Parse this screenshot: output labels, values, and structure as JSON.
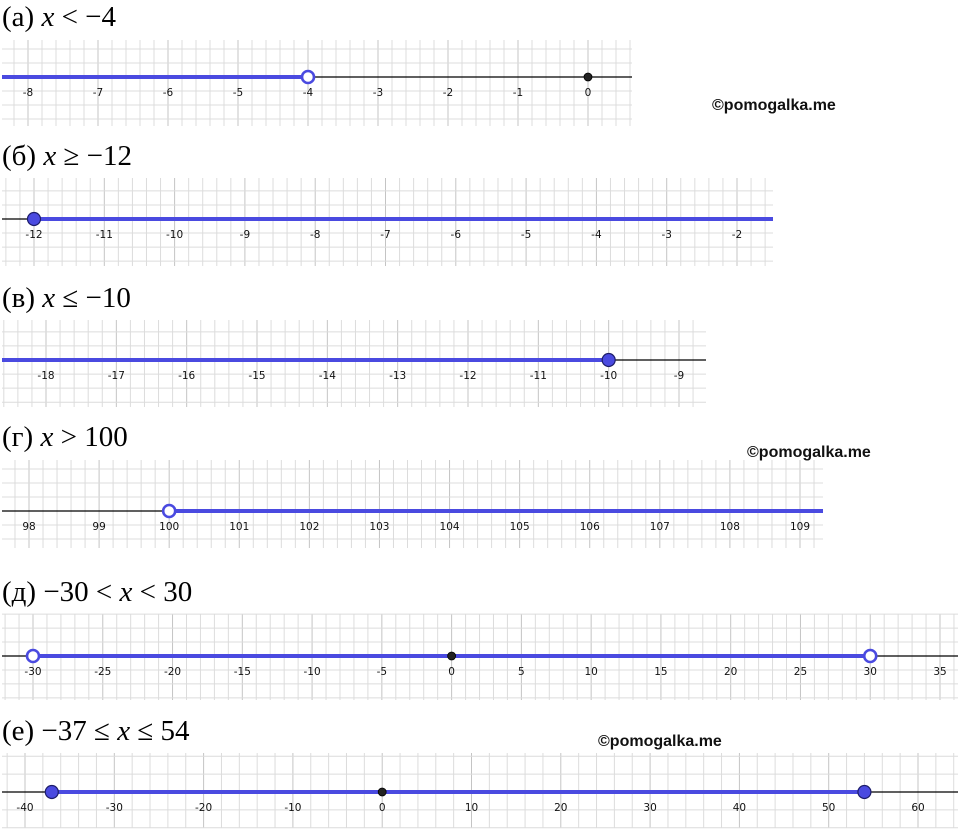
{
  "watermark_text": "©pomogalka.me",
  "colors": {
    "interval": "#4a4ae0",
    "point_fill": "#4a4ae0",
    "zero_point": "#222222",
    "axis": "#000000"
  },
  "chart_data": [
    {
      "type": "number-line",
      "letter": "(а)",
      "pre": "",
      "inequality": "x < −4",
      "label_parts": [
        [
          "(а) ",
          "n"
        ],
        [
          "x",
          "i"
        ],
        [
          " < −4",
          "n"
        ]
      ],
      "ticks": [
        -8,
        -7,
        -6,
        -5,
        -4,
        -3,
        -2,
        -1,
        0
      ],
      "tick_labels": [
        "-8",
        "-7",
        "-6",
        "-5",
        "-4",
        "-3",
        "-2",
        "-1",
        "0"
      ],
      "interval": {
        "from": null,
        "to": -4
      },
      "points": [
        {
          "x": -4,
          "closed": false
        },
        {
          "x": 0,
          "zero": true
        }
      ]
    },
    {
      "type": "number-line",
      "letter": "(б)",
      "inequality": "x ≥ −12",
      "label_parts": [
        [
          "(б) ",
          "n"
        ],
        [
          "x",
          "i"
        ],
        [
          " ≥ −12",
          "n"
        ]
      ],
      "ticks": [
        -12,
        -11,
        -10,
        -9,
        -8,
        -7,
        -6,
        -5,
        -4,
        -3,
        -2
      ],
      "tick_labels": [
        "-12",
        "-11",
        "-10",
        "-9",
        "-8",
        "-7",
        "-6",
        "-5",
        "-4",
        "-3",
        "-2"
      ],
      "interval": {
        "from": -12,
        "to": null
      },
      "points": [
        {
          "x": -12,
          "closed": true
        }
      ]
    },
    {
      "type": "number-line",
      "letter": "(в)",
      "inequality": "x ≤ −10",
      "label_parts": [
        [
          "(в) ",
          "n"
        ],
        [
          "x",
          "i"
        ],
        [
          " ≤ −10",
          "n"
        ]
      ],
      "ticks": [
        -18,
        -17,
        -16,
        -15,
        -14,
        -13,
        -12,
        -11,
        -10,
        -9
      ],
      "tick_labels": [
        "-18",
        "-17",
        "-16",
        "-15",
        "-14",
        "-13",
        "-12",
        "-11",
        "-10",
        "-9"
      ],
      "interval": {
        "from": null,
        "to": -10
      },
      "points": [
        {
          "x": -10,
          "closed": true
        }
      ]
    },
    {
      "type": "number-line",
      "letter": "(г)",
      "inequality": "x > 100",
      "label_parts": [
        [
          "(г) ",
          "n"
        ],
        [
          "x",
          "i"
        ],
        [
          " > 100",
          "n"
        ]
      ],
      "ticks": [
        98,
        99,
        100,
        101,
        102,
        103,
        104,
        105,
        106,
        107,
        108,
        109
      ],
      "tick_labels": [
        "98",
        "99",
        "100",
        "101",
        "102",
        "103",
        "104",
        "105",
        "106",
        "107",
        "108",
        "109"
      ],
      "interval": {
        "from": 100,
        "to": null
      },
      "points": [
        {
          "x": 100,
          "closed": false
        }
      ]
    },
    {
      "type": "number-line",
      "letter": "(д)",
      "inequality": "−30 < x < 30",
      "label_parts": [
        [
          "(д) −30 < ",
          "n"
        ],
        [
          "x",
          "i"
        ],
        [
          " < 30",
          "n"
        ]
      ],
      "ticks": [
        -30,
        -25,
        -20,
        -15,
        -10,
        -5,
        0,
        5,
        10,
        15,
        20,
        25,
        30,
        35
      ],
      "tick_labels": [
        "-30",
        "-25",
        "-20",
        "-15",
        "-10",
        "-5",
        "0",
        "5",
        "10",
        "15",
        "20",
        "25",
        "30",
        "35"
      ],
      "interval": {
        "from": -30,
        "to": 30
      },
      "points": [
        {
          "x": -30,
          "closed": false
        },
        {
          "x": 30,
          "closed": false
        },
        {
          "x": 0,
          "zero": true
        }
      ]
    },
    {
      "type": "number-line",
      "letter": "(е)",
      "inequality": "−37 ≤ x ≤ 54",
      "label_parts": [
        [
          "(е) −37 ≤ ",
          "n"
        ],
        [
          "x",
          "i"
        ],
        [
          " ≤ 54",
          "n"
        ]
      ],
      "ticks": [
        -40,
        -30,
        -20,
        -10,
        0,
        10,
        20,
        30,
        40,
        50,
        60
      ],
      "tick_labels": [
        "-40",
        "-30",
        "-20",
        "-10",
        "0",
        "10",
        "20",
        "30",
        "40",
        "50",
        "60"
      ],
      "interval": {
        "from": -37,
        "to": 54
      },
      "points": [
        {
          "x": -37,
          "closed": true
        },
        {
          "x": 54,
          "closed": true
        },
        {
          "x": 0,
          "zero": true
        }
      ]
    }
  ]
}
